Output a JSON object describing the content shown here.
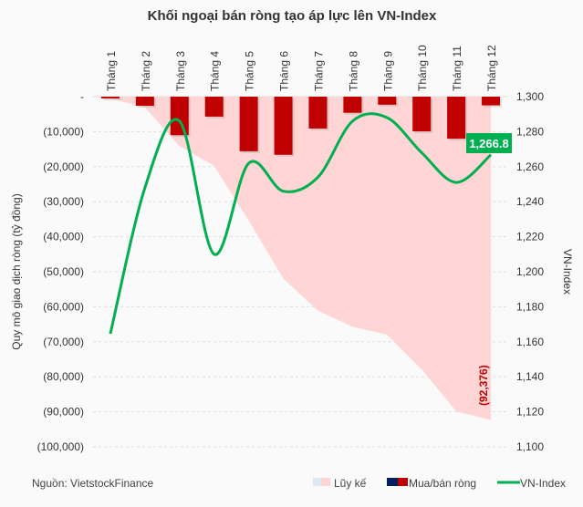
{
  "chart_data": {
    "type": "bar+line+area",
    "title": "Khối ngoại bán ròng tạo áp lực lên VN-Index",
    "categories": [
      "Tháng 1",
      "Tháng 2",
      "Tháng 3",
      "Tháng 4",
      "Tháng 5",
      "Tháng 6",
      "Tháng 7",
      "Tháng 8",
      "Tháng 9",
      "Tháng 10",
      "Tháng 11",
      "Tháng 12"
    ],
    "ylabel": "Quy mô giao dịch ròng (tỷ đồng)",
    "ylabel_right": "VN-Index",
    "ylim": [
      -100000,
      0
    ],
    "ylim_right": [
      1100,
      1300
    ],
    "yticks": [
      "-",
      "(10,000)",
      "(20,000)",
      "(30,000)",
      "(40,000)",
      "(50,000)",
      "(60,000)",
      "(70,000)",
      "(80,000)",
      "(90,000)",
      "(100,000)"
    ],
    "yticks_right": [
      "1,300",
      "1,280",
      "1,260",
      "1,240",
      "1,220",
      "1,200",
      "1,180",
      "1,160",
      "1,140",
      "1,120",
      "1,100"
    ],
    "series": [
      {
        "name": "Lũy kế",
        "type": "area",
        "color": "#ffd5d5",
        "values": [
          -500,
          -3100,
          -14100,
          -19800,
          -35400,
          -52000,
          -61100,
          -65700,
          -68000,
          -77900,
          -89900,
          -92376
        ]
      },
      {
        "name": "Mua/bán ròng",
        "type": "bar",
        "color": "#c00000",
        "values": [
          -500,
          -2600,
          -11000,
          -5700,
          -15600,
          -16600,
          -9100,
          -4600,
          -2300,
          -9900,
          -12000,
          -2476
        ]
      },
      {
        "name": "VN-Index",
        "type": "line",
        "color": "#00b050",
        "values": [
          1164.6,
          1248,
          1286,
          1210,
          1262,
          1246,
          1254,
          1286,
          1288,
          1268,
          1251,
          1266.8
        ]
      }
    ],
    "annotations": {
      "last_index": "1,266.8",
      "cumulative_total": "(92,376)"
    },
    "legend": {
      "position": "bottom-right",
      "items": [
        "Lũy kế",
        "Mua/bán ròng",
        "VN-Index"
      ]
    },
    "grid": "horizontal dashed"
  },
  "source": "Nguồn: VietstockFinance"
}
